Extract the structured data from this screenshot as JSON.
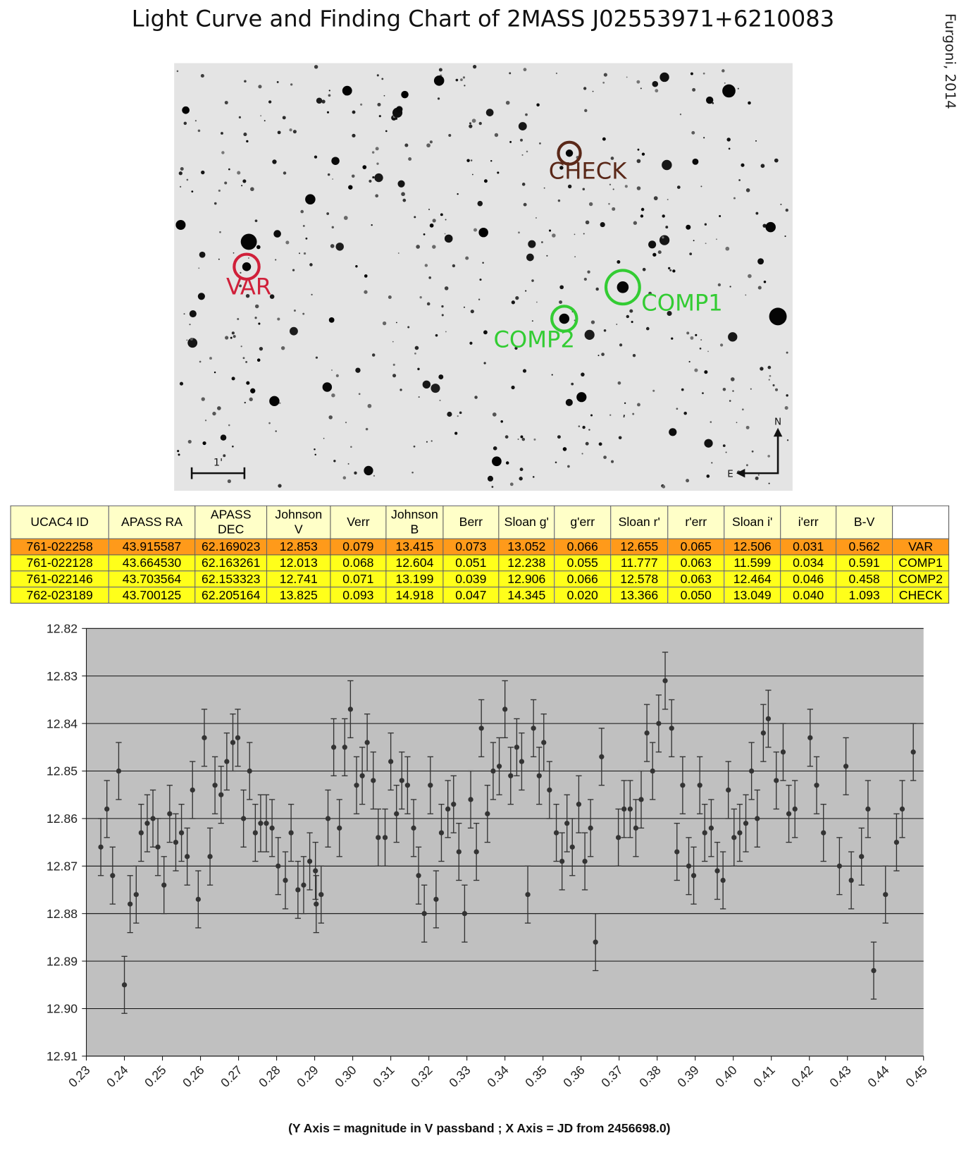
{
  "title": "Light Curve and Finding Chart of 2MASS J02553971+6210083",
  "credit": "Furgoni, 2014",
  "finding_chart": {
    "markers": [
      {
        "label": "CHECK"
      },
      {
        "label": "VAR"
      },
      {
        "label": "COMP1"
      },
      {
        "label": "COMP2"
      }
    ],
    "scale_label": "1'",
    "north": "N",
    "east": "E"
  },
  "table": {
    "header": [
      "UCAC4 ID",
      "APASS RA",
      "APASS DEC",
      "Johnson V",
      "Verr",
      "Johnson B",
      "Berr",
      "Sloan g'",
      "g'err",
      "Sloan r'",
      "r'err",
      "Sloan i'",
      "i'err",
      "B-V"
    ],
    "rows": [
      [
        "761-022258",
        "43.915587",
        "62.169023",
        "12.853",
        "0.079",
        "13.415",
        "0.073",
        "13.052",
        "0.066",
        "12.655",
        "0.065",
        "12.506",
        "0.031",
        "0.562",
        "VAR"
      ],
      [
        "761-022128",
        "43.664530",
        "62.163261",
        "12.013",
        "0.068",
        "12.604",
        "0.051",
        "12.238",
        "0.055",
        "11.777",
        "0.063",
        "11.599",
        "0.034",
        "0.591",
        "COMP1"
      ],
      [
        "761-022146",
        "43.703564",
        "62.153323",
        "12.741",
        "0.071",
        "13.199",
        "0.039",
        "12.906",
        "0.066",
        "12.578",
        "0.063",
        "12.464",
        "0.046",
        "0.458",
        "COMP2"
      ],
      [
        "762-023189",
        "43.700125",
        "62.205164",
        "13.825",
        "0.093",
        "14.918",
        "0.047",
        "14.345",
        "0.020",
        "13.366",
        "0.050",
        "13.049",
        "0.040",
        "1.093",
        "CHECK"
      ]
    ]
  },
  "chart_data": {
    "type": "scatter",
    "caption": "(Y Axis = magnitude in V passband ; X Axis = JD from 2456698.0)",
    "color": "#333333",
    "error": 0.006,
    "grid": true,
    "y_inverted": true,
    "xlim": [
      0.23,
      0.45
    ],
    "ylim": [
      12.82,
      12.91
    ],
    "xticks": [
      0.23,
      0.24,
      0.25,
      0.26,
      0.27,
      0.28,
      0.29,
      {
        "value": 0.3,
        "label": "0.30"
      },
      0.31,
      0.32,
      0.33,
      0.34,
      0.35,
      0.36,
      0.37,
      0.38,
      0.39,
      {
        "value": 0.4,
        "label": "0.40"
      },
      0.41,
      0.42,
      0.43,
      0.44,
      0.45
    ],
    "yticks": [
      12.82,
      12.83,
      12.84,
      12.85,
      12.86,
      12.87,
      12.88,
      12.89,
      {
        "value": 12.9,
        "label": "12.90"
      },
      12.91
    ],
    "x": [
      0.2338,
      0.2354,
      0.2369,
      0.2385,
      0.24,
      0.2415,
      0.2431,
      0.2444,
      0.246,
      0.2475,
      0.2488,
      0.2504,
      0.2519,
      0.2535,
      0.255,
      0.2565,
      0.2579,
      0.2594,
      0.261,
      0.2625,
      0.2638,
      0.2654,
      0.2669,
      0.2685,
      0.2698,
      0.2713,
      0.2729,
      0.2744,
      0.2758,
      0.2773,
      0.2788,
      0.2804,
      0.2823,
      0.2838,
      0.2856,
      0.2871,
      0.2887,
      0.2902,
      0.2904,
      0.2917,
      0.2935,
      0.295,
      0.2965,
      0.2979,
      0.2994,
      0.301,
      0.3025,
      0.3038,
      0.3054,
      0.3067,
      0.3085,
      0.31,
      0.3115,
      0.3129,
      0.3144,
      0.316,
      0.3173,
      0.3188,
      0.3204,
      0.3219,
      0.3233,
      0.325,
      0.3265,
      0.3279,
      0.3294,
      0.331,
      0.3325,
      0.3338,
      0.3354,
      0.3369,
      0.3385,
      0.34,
      0.3415,
      0.3431,
      0.3444,
      0.346,
      0.3475,
      0.349,
      0.3502,
      0.3517,
      0.3535,
      0.355,
      0.3563,
      0.3577,
      0.3594,
      0.361,
      0.3625,
      0.3638,
      0.3654,
      0.3698,
      0.3713,
      0.3729,
      0.3744,
      0.3758,
      0.3773,
      0.3788,
      0.3804,
      0.3821,
      0.3838,
      0.3852,
      0.3867,
      0.3883,
      0.3896,
      0.3912,
      0.3925,
      0.3942,
      0.3958,
      0.3973,
      0.3987,
      0.4002,
      0.4017,
      0.4033,
      0.4048,
      0.4063,
      0.4079,
      0.4092,
      0.4113,
      0.4131,
      0.4146,
      0.4162,
      0.4202,
      0.4219,
      0.4237,
      0.4279,
      0.4296,
      0.431,
      0.4337,
      0.4354,
      0.4369,
      0.44,
      0.4429,
      0.4444,
      0.4473
    ],
    "values": [
      12.866,
      12.858,
      12.872,
      12.85,
      12.895,
      12.878,
      12.876,
      12.863,
      12.861,
      12.86,
      12.866,
      12.874,
      12.859,
      12.865,
      12.863,
      12.868,
      12.854,
      12.877,
      12.843,
      12.868,
      12.853,
      12.855,
      12.848,
      12.844,
      12.843,
      12.86,
      12.85,
      12.863,
      12.861,
      12.861,
      12.862,
      12.87,
      12.873,
      12.863,
      12.875,
      12.874,
      12.869,
      12.871,
      12.878,
      12.876,
      12.86,
      12.845,
      12.862,
      12.845,
      12.837,
      12.853,
      12.851,
      12.844,
      12.852,
      12.864,
      12.864,
      12.848,
      12.859,
      12.852,
      12.853,
      12.862,
      12.872,
      12.88,
      12.853,
      12.877,
      12.863,
      12.858,
      12.857,
      12.867,
      12.88,
      12.856,
      12.867,
      12.841,
      12.859,
      12.85,
      12.849,
      12.837,
      12.851,
      12.845,
      12.848,
      12.876,
      12.841,
      12.851,
      12.844,
      12.854,
      12.863,
      12.869,
      12.861,
      12.866,
      12.857,
      12.869,
      12.862,
      12.886,
      12.847,
      12.864,
      12.858,
      12.858,
      12.862,
      12.856,
      12.842,
      12.85,
      12.84,
      12.831,
      12.841,
      12.867,
      12.853,
      12.87,
      12.872,
      12.853,
      12.863,
      12.862,
      12.871,
      12.873,
      12.854,
      12.864,
      12.863,
      12.861,
      12.85,
      12.86,
      12.842,
      12.839,
      12.852,
      12.846,
      12.859,
      12.858,
      12.843,
      12.853,
      12.863,
      12.87,
      12.849,
      12.873,
      12.868,
      12.858,
      12.892,
      12.876,
      12.865,
      12.858,
      12.846
    ]
  }
}
